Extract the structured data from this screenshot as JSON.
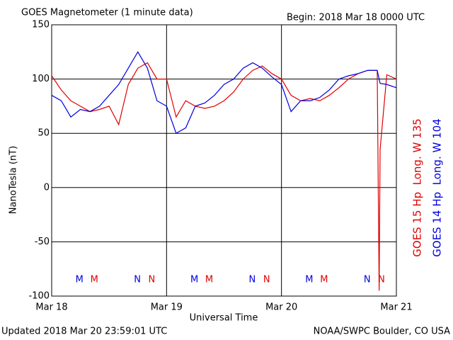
{
  "chart_data": {
    "type": "line",
    "title": "GOES Magnetometer (1 minute data)",
    "subtitle": "Begin:  2018 Mar 18 0000 UTC",
    "xlabel": "Universal Time",
    "ylabel": "NanoTesla (nT)",
    "footer_left": "Updated 2018 Mar 20 23:59:01 UTC",
    "footer_right": "NOAA/SWPC Boulder, CO USA",
    "xlim": [
      0,
      72
    ],
    "xticks": [
      {
        "value": 0,
        "label": "Mar 18"
      },
      {
        "value": 24,
        "label": "Mar 19"
      },
      {
        "value": 48,
        "label": "Mar 20"
      },
      {
        "value": 72,
        "label": "Mar 21"
      }
    ],
    "ylim": [
      -100,
      150
    ],
    "yticks": [
      -100,
      -50,
      0,
      50,
      100,
      150
    ],
    "grid": true,
    "x": [
      0,
      2,
      4,
      6,
      8,
      10,
      12,
      14,
      16,
      18,
      20,
      22,
      24,
      26,
      28,
      30,
      32,
      34,
      36,
      38,
      40,
      42,
      44,
      46,
      48,
      50,
      52,
      54,
      56,
      58,
      60,
      62,
      64,
      66,
      68,
      68.4,
      68.6,
      70,
      72
    ],
    "series": [
      {
        "name": "GOES 15 Hp  Long. W 135",
        "color": "#e00000",
        "values": [
          103,
          90,
          80,
          75,
          70,
          72,
          75,
          58,
          95,
          110,
          115,
          100,
          100,
          65,
          80,
          75,
          73,
          75,
          80,
          88,
          100,
          108,
          112,
          105,
          100,
          85,
          80,
          82,
          80,
          85,
          92,
          100,
          105,
          108,
          108,
          -95,
          35,
          104,
          100
        ]
      },
      {
        "name": "GOES 14 Hp  Long. W 104",
        "color": "#0000e0",
        "values": [
          85,
          80,
          65,
          72,
          70,
          75,
          85,
          95,
          110,
          125,
          110,
          80,
          75,
          50,
          55,
          75,
          78,
          85,
          95,
          100,
          110,
          115,
          110,
          102,
          95,
          70,
          80,
          80,
          83,
          90,
          100,
          103,
          105,
          108,
          108,
          100,
          96,
          95,
          92
        ]
      }
    ],
    "markers": [
      {
        "label": "M",
        "x": 5.8,
        "series": 1
      },
      {
        "label": "M",
        "x": 8.9,
        "series": 0
      },
      {
        "label": "N",
        "x": 17.9,
        "series": 1
      },
      {
        "label": "N",
        "x": 20.9,
        "series": 0
      },
      {
        "label": "M",
        "x": 29.8,
        "series": 1
      },
      {
        "label": "M",
        "x": 32.9,
        "series": 0
      },
      {
        "label": "N",
        "x": 41.9,
        "series": 1
      },
      {
        "label": "N",
        "x": 44.9,
        "series": 0
      },
      {
        "label": "M",
        "x": 53.8,
        "series": 1
      },
      {
        "label": "M",
        "x": 56.9,
        "series": 0
      },
      {
        "label": "N",
        "x": 65.9,
        "series": 1
      },
      {
        "label": "N",
        "x": 68.9,
        "series": 0
      }
    ],
    "marker_level": -85
  }
}
